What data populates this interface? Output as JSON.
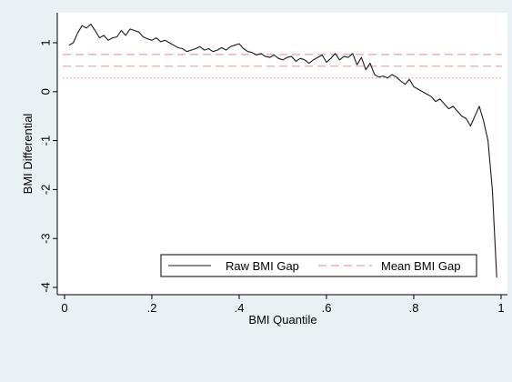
{
  "chart_data": {
    "type": "line",
    "title": "",
    "xlabel": "BMI Quantile",
    "ylabel": "BMI Differential",
    "xlim": [
      0,
      1
    ],
    "ylim": [
      -4.05,
      1.55
    ],
    "xticks": [
      0,
      0.2,
      0.4,
      0.6,
      0.8,
      1
    ],
    "xtick_labels": [
      "0",
      ".2",
      ".4",
      ".6",
      ".8",
      "1"
    ],
    "yticks": [
      1,
      0,
      -1,
      -2,
      -3,
      -4
    ],
    "ytick_labels": [
      "1",
      "0",
      "-1",
      "-2",
      "-3",
      "-4"
    ],
    "grid": false,
    "legend_position": "bottom-right",
    "colors": {
      "outer_background": "#eaf1f4",
      "plot_background": "#ffffff",
      "raw_line": "#1a1a1a",
      "mean_line": "#e8a0a0",
      "band_line": "#e8a0a0"
    },
    "series": [
      {
        "name": "Raw BMI Gap",
        "style": "solid",
        "x": [
          0.01,
          0.02,
          0.03,
          0.04,
          0.05,
          0.06,
          0.07,
          0.08,
          0.09,
          0.1,
          0.11,
          0.12,
          0.13,
          0.14,
          0.15,
          0.16,
          0.17,
          0.18,
          0.19,
          0.2,
          0.21,
          0.22,
          0.23,
          0.24,
          0.25,
          0.26,
          0.27,
          0.28,
          0.29,
          0.3,
          0.31,
          0.32,
          0.33,
          0.34,
          0.35,
          0.36,
          0.37,
          0.38,
          0.39,
          0.4,
          0.41,
          0.42,
          0.43,
          0.44,
          0.45,
          0.46,
          0.47,
          0.48,
          0.49,
          0.5,
          0.51,
          0.52,
          0.53,
          0.54,
          0.55,
          0.56,
          0.57,
          0.58,
          0.59,
          0.6,
          0.61,
          0.62,
          0.63,
          0.64,
          0.65,
          0.66,
          0.67,
          0.68,
          0.69,
          0.7,
          0.71,
          0.72,
          0.73,
          0.74,
          0.75,
          0.76,
          0.77,
          0.78,
          0.79,
          0.8,
          0.81,
          0.82,
          0.83,
          0.84,
          0.85,
          0.86,
          0.87,
          0.88,
          0.89,
          0.9,
          0.91,
          0.92,
          0.93,
          0.94,
          0.95,
          0.96,
          0.97,
          0.98,
          0.99
        ],
        "y": [
          0.95,
          1.0,
          1.2,
          1.35,
          1.3,
          1.38,
          1.25,
          1.1,
          1.15,
          1.05,
          1.1,
          1.12,
          1.25,
          1.15,
          1.28,
          1.25,
          1.22,
          1.12,
          1.08,
          1.05,
          1.1,
          1.02,
          1.05,
          1.0,
          0.95,
          0.9,
          0.88,
          0.82,
          0.85,
          0.88,
          0.92,
          0.85,
          0.88,
          0.82,
          0.85,
          0.9,
          0.85,
          0.92,
          0.95,
          0.98,
          0.88,
          0.82,
          0.8,
          0.75,
          0.78,
          0.72,
          0.7,
          0.75,
          0.68,
          0.65,
          0.7,
          0.72,
          0.62,
          0.68,
          0.65,
          0.58,
          0.65,
          0.7,
          0.75,
          0.6,
          0.68,
          0.78,
          0.65,
          0.72,
          0.7,
          0.78,
          0.55,
          0.7,
          0.45,
          0.58,
          0.35,
          0.3,
          0.32,
          0.28,
          0.35,
          0.3,
          0.22,
          0.15,
          0.25,
          0.1,
          0.05,
          0.0,
          -0.05,
          -0.1,
          -0.2,
          -0.15,
          -0.25,
          -0.35,
          -0.3,
          -0.4,
          -0.5,
          -0.55,
          -0.7,
          -0.5,
          -0.3,
          -0.6,
          -1.0,
          -2.0,
          -3.8
        ]
      },
      {
        "name": "Mean BMI Gap",
        "style": "dashed",
        "value": 0.52
      },
      {
        "name": "",
        "style": "dashed",
        "value": 0.76
      },
      {
        "name": "",
        "style": "dotted",
        "value": 0.28
      }
    ]
  }
}
